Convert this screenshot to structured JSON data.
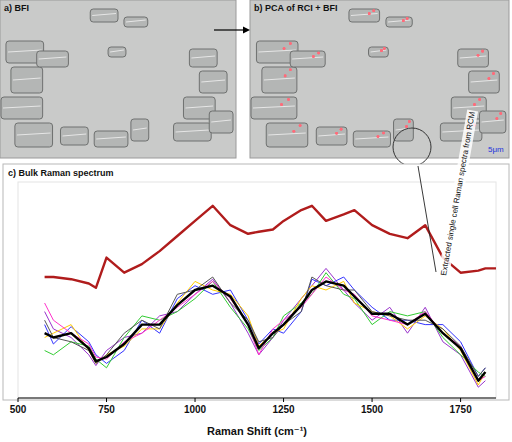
{
  "images": [
    {
      "label": "a) BFI"
    },
    {
      "label": "b) PCA of RCI + BFI",
      "scale_bar": "5μm"
    }
  ],
  "chart_data": {
    "type": "line",
    "title": "c) Bulk Raman spectrum",
    "x_label": "Raman Shift (cm⁻¹)",
    "annotations": [
      {
        "text": "Extracted single cell Raman spectra from RCM"
      }
    ],
    "xlim": [
      500,
      1850
    ],
    "xticks": [
      500,
      750,
      1000,
      1250,
      1500,
      1750
    ],
    "ylim": [
      0,
      100
    ],
    "tick_labels": "x",
    "x": [
      575,
      600,
      650,
      700,
      720,
      750,
      800,
      850,
      900,
      950,
      1000,
      1050,
      1100,
      1150,
      1180,
      1220,
      1250,
      1300,
      1330,
      1370,
      1420,
      1450,
      1500,
      1550,
      1600,
      1650,
      1700,
      1750,
      1800,
      1820,
      1850
    ],
    "series": [
      {
        "color": "#b01c1c",
        "line_style": "bold",
        "values": [
          56,
          56,
          55,
          53,
          51,
          65,
          58,
          62,
          68,
          75,
          82,
          89,
          80,
          76,
          77,
          78,
          82,
          87,
          89,
          82,
          85,
          87,
          80,
          76,
          74,
          80,
          65,
          58,
          59,
          60,
          60
        ]
      },
      {
        "color": "#9933cc",
        "line_style": "solid",
        "values": [
          40,
          32,
          28,
          20,
          15,
          22,
          28,
          30,
          38,
          40,
          48,
          55,
          44,
          30,
          20,
          28,
          36,
          46,
          52,
          60,
          50,
          44,
          36,
          42,
          30,
          42,
          26,
          20,
          5,
          8,
          null
        ]
      },
      {
        "color": "#3333ff",
        "line_style": "solid",
        "values": [
          34,
          25,
          33,
          26,
          20,
          16,
          22,
          36,
          30,
          46,
          52,
          48,
          50,
          36,
          25,
          32,
          30,
          40,
          55,
          52,
          56,
          50,
          42,
          36,
          36,
          34,
          34,
          26,
          10,
          14,
          null
        ]
      },
      {
        "color": "#33cc33",
        "line_style": "solid",
        "values": [
          22,
          20,
          26,
          24,
          18,
          14,
          28,
          38,
          36,
          40,
          46,
          54,
          42,
          32,
          22,
          28,
          38,
          44,
          48,
          58,
          48,
          46,
          34,
          40,
          38,
          40,
          28,
          20,
          12,
          10,
          null
        ]
      },
      {
        "color": "#ffcc00",
        "line_style": "solid",
        "values": [
          28,
          30,
          34,
          22,
          16,
          20,
          24,
          32,
          32,
          44,
          54,
          50,
          48,
          38,
          24,
          30,
          32,
          46,
          52,
          50,
          54,
          44,
          40,
          38,
          32,
          38,
          32,
          22,
          6,
          12,
          null
        ]
      },
      {
        "color": "#ff33cc",
        "line_style": "solid",
        "values": [
          44,
          36,
          30,
          25,
          19,
          18,
          26,
          30,
          36,
          42,
          48,
          54,
          46,
          34,
          20,
          32,
          36,
          42,
          48,
          56,
          50,
          48,
          38,
          36,
          34,
          40,
          30,
          24,
          8,
          10,
          null
        ]
      },
      {
        "color": "#555555",
        "line_style": "solid",
        "values": [
          36,
          28,
          26,
          22,
          16,
          20,
          30,
          36,
          32,
          48,
          50,
          56,
          44,
          36,
          26,
          28,
          34,
          40,
          56,
          52,
          50,
          50,
          40,
          38,
          36,
          36,
          32,
          24,
          10,
          14,
          null
        ]
      },
      {
        "color": "#000000",
        "line_style": "bold",
        "values": [
          30,
          28,
          30,
          23,
          17,
          19,
          25,
          34,
          34,
          43,
          50,
          52,
          47,
          34,
          23,
          30,
          34,
          43,
          50,
          54,
          52,
          47,
          39,
          39,
          34,
          39,
          30,
          23,
          8,
          12,
          null
        ]
      }
    ]
  }
}
